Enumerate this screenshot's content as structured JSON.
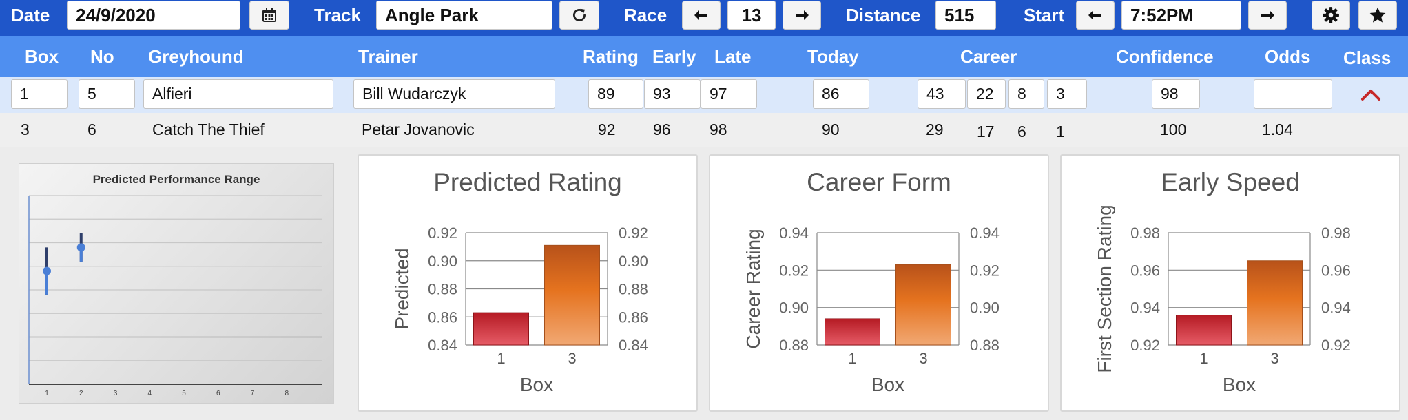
{
  "toolbar": {
    "date_label": "Date",
    "date_value": "24/9/2020",
    "track_label": "Track",
    "track_value": "Angle Park",
    "race_label": "Race",
    "race_value": "13",
    "distance_label": "Distance",
    "distance_value": "515",
    "start_label": "Start",
    "start_value": "7:52PM",
    "icons": [
      "calendar-icon",
      "refresh-icon",
      "arrow-left-icon",
      "arrow-right-icon",
      "gear-icon",
      "star-icon"
    ]
  },
  "table": {
    "headers": {
      "box": "Box",
      "no": "No",
      "greyhound": "Greyhound",
      "trainer": "Trainer",
      "rating": "Rating",
      "early": "Early",
      "late": "Late",
      "today": "Today",
      "career": "Career",
      "confidence": "Confidence",
      "odds": "Odds",
      "class": "Class"
    },
    "rows": [
      {
        "box": "1",
        "no": "5",
        "greyhound": "Alfieri",
        "trainer": "Bill Wudarczyk",
        "rating": "89",
        "early": "93",
        "late": "97",
        "today": "86",
        "career_starts": "43",
        "career_1st": "22",
        "career_2nd": "8",
        "career_3rd": "3",
        "confidence": "98",
        "odds": ""
      },
      {
        "box": "3",
        "no": "6",
        "greyhound": "Catch The Thief",
        "trainer": "Petar Jovanovic",
        "rating": "92",
        "early": "96",
        "late": "98",
        "today": "90",
        "career_starts": "29",
        "career_1st": "17",
        "career_2nd": "6",
        "career_3rd": "1",
        "confidence": "100",
        "odds": "1.04"
      }
    ],
    "accent_color": "#c62828"
  },
  "chart_data": [
    {
      "type": "scatter",
      "title": "Predicted Performance Range",
      "x_ticks": [
        "1",
        "2",
        "3",
        "4",
        "5",
        "6",
        "7",
        "8"
      ],
      "points": [
        {
          "x": 1,
          "y": 0.48,
          "low": 0.38,
          "high": 0.58
        },
        {
          "x": 2,
          "y": 0.58,
          "low": 0.52,
          "high": 0.64
        }
      ],
      "ylim": [
        0,
        0.8
      ],
      "grid": true
    },
    {
      "type": "bar",
      "title": "Predicted Rating",
      "categories": [
        "1",
        "3"
      ],
      "values": [
        0.863,
        0.911
      ],
      "xlabel": "Box",
      "ylabel": "Predicted",
      "ylim": [
        0.84,
        0.92
      ],
      "ticks": [
        "0.84",
        "0.86",
        "0.88",
        "0.90",
        "0.92"
      ],
      "secondary_axis": true,
      "colors": [
        "#c0242a",
        "#e56a1c"
      ]
    },
    {
      "type": "bar",
      "title": "Career Form",
      "categories": [
        "1",
        "3"
      ],
      "values": [
        0.894,
        0.923
      ],
      "xlabel": "Box",
      "ylabel": "Career Rating",
      "ylim": [
        0.88,
        0.94
      ],
      "ticks": [
        "0.88",
        "0.90",
        "0.92",
        "0.94"
      ],
      "secondary_axis": true,
      "colors": [
        "#c0242a",
        "#e56a1c"
      ]
    },
    {
      "type": "bar",
      "title": "Early Speed",
      "categories": [
        "1",
        "3"
      ],
      "values": [
        0.936,
        0.965
      ],
      "xlabel": "Box",
      "ylabel": "First Section Rating",
      "ylim": [
        0.92,
        0.98
      ],
      "ticks": [
        "0.92",
        "0.94",
        "0.96",
        "0.98"
      ],
      "secondary_axis": true,
      "colors": [
        "#c0242a",
        "#e56a1c"
      ]
    }
  ]
}
